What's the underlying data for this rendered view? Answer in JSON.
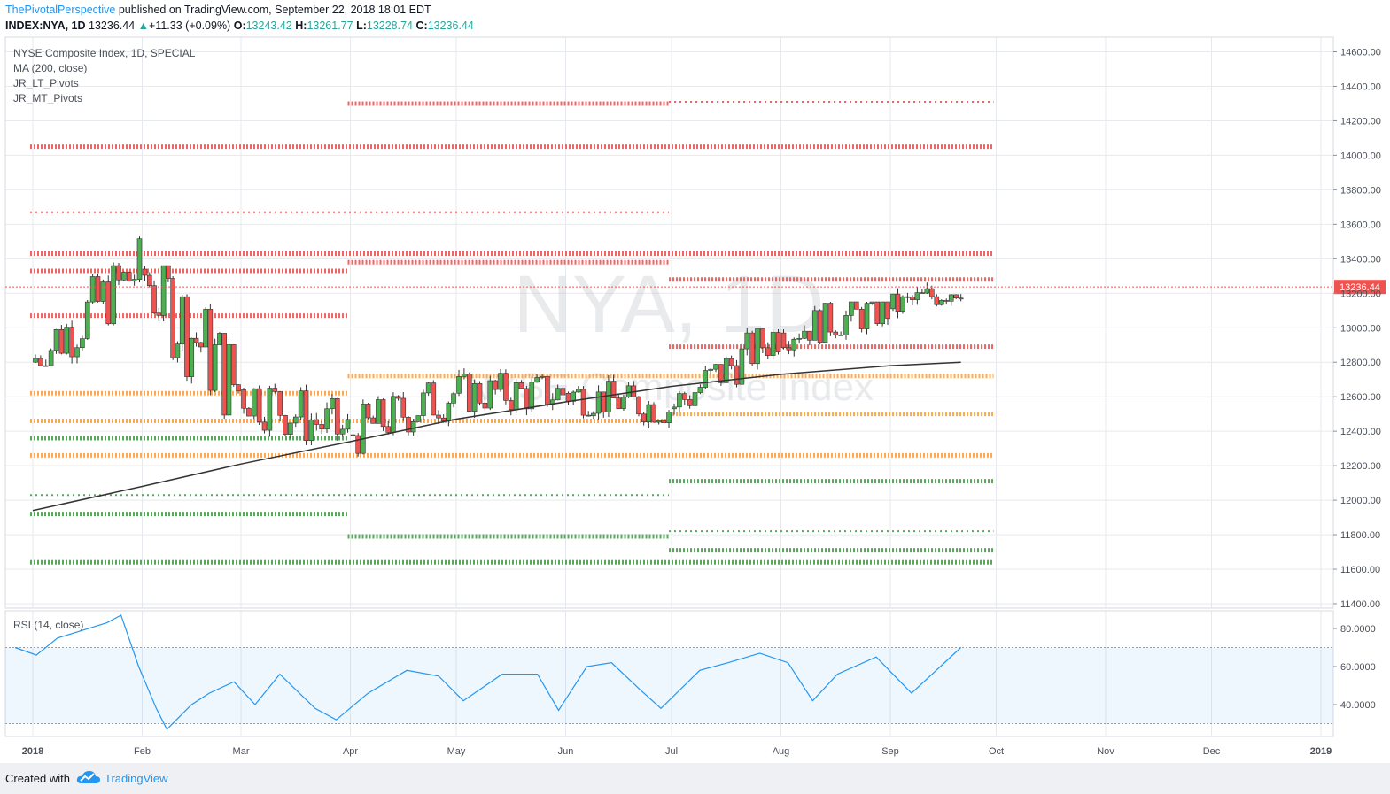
{
  "header": {
    "author": "ThePivotalPerspective",
    "published": "published on TradingView.com, September 22, 2018 18:01 EDT",
    "symbol": "INDEX:NYA, 1D",
    "last": "13236.44",
    "change": "+11.33 (+0.09%)",
    "o_label": "O:",
    "o_value": "13243.42",
    "h_label": "H:",
    "h_value": "13261.77",
    "l_label": "L:",
    "l_value": "13228.74",
    "c_label": "C:",
    "c_value": "13236.44"
  },
  "legend": [
    "NYSE Composite Index, 1D, SPECIAL",
    "MA (200, close)",
    "JR_LT_Pivots",
    "JR_MT_Pivots"
  ],
  "watermark": {
    "symbol": "NYA, 1D",
    "name": "NYSE Composite Index"
  },
  "colors": {
    "up": "#4caf50",
    "down": "#ef5350",
    "resistance": "#ef5350",
    "mid": "#ff9e3d",
    "support": "#43a047",
    "ma": "#333333",
    "rsi": "#2196f3",
    "last_price_tag": "#ef5350"
  },
  "chart_data": [
    {
      "type": "candlestick",
      "title": "NYSE Composite Index, 1D, SPECIAL",
      "ylim": [
        11400,
        14700
      ],
      "y_ticks": [
        "14600.00",
        "14400.00",
        "14200.00",
        "14000.00",
        "13800.00",
        "13600.00",
        "13400.00",
        "13200.00",
        "13000.00",
        "12800.00",
        "12600.00",
        "12400.00",
        "12200.00",
        "12000.00",
        "11800.00",
        "11600.00",
        "11400.00"
      ],
      "x_ticks": [
        "2018",
        "Feb",
        "Mar",
        "Apr",
        "May",
        "Jun",
        "Jul",
        "Aug",
        "Sep",
        "Oct",
        "Nov",
        "Dec",
        "2019"
      ],
      "last_price": "13236.44",
      "ohlc_monthly_approx": [
        {
          "month": "2017-12 end",
          "o": 12780,
          "h": 12820,
          "l": 12750,
          "c": 12800
        },
        {
          "month": "Jan",
          "o": 12800,
          "h": 13640,
          "l": 12780,
          "c": 13340
        },
        {
          "month": "Feb",
          "o": 13340,
          "h": 13360,
          "l": 12050,
          "c": 12640
        },
        {
          "month": "Mar",
          "o": 12640,
          "h": 12960,
          "l": 12180,
          "c": 12380
        },
        {
          "month": "Apr",
          "o": 12380,
          "h": 12750,
          "l": 12100,
          "c": 12620
        },
        {
          "month": "May",
          "o": 12620,
          "h": 12830,
          "l": 12270,
          "c": 12620
        },
        {
          "month": "Jun",
          "o": 12620,
          "h": 12870,
          "l": 12380,
          "c": 12530
        },
        {
          "month": "Jul",
          "o": 12530,
          "h": 13000,
          "l": 12400,
          "c": 12970
        },
        {
          "month": "Aug",
          "o": 12970,
          "h": 13150,
          "l": 12650,
          "c": 13110
        },
        {
          "month": "Sep",
          "o": 13110,
          "h": 13262,
          "l": 12880,
          "c": 13236
        }
      ],
      "ma200": {
        "name": "MA (200, close)",
        "points": [
          {
            "x": "2018-01-01",
            "y": 11940
          },
          {
            "x": "2018-02-01",
            "y": 12080
          },
          {
            "x": "2018-03-01",
            "y": 12210
          },
          {
            "x": "2018-04-01",
            "y": 12340
          },
          {
            "x": "2018-05-01",
            "y": 12470
          },
          {
            "x": "2018-06-01",
            "y": 12570
          },
          {
            "x": "2018-07-01",
            "y": 12660
          },
          {
            "x": "2018-08-01",
            "y": 12730
          },
          {
            "x": "2018-09-01",
            "y": 12780
          },
          {
            "x": "2018-09-21",
            "y": 12800
          }
        ]
      },
      "pivot_levels": [
        {
          "y": 14300,
          "from": "2018-04",
          "to": "2018-06",
          "role": "resistance",
          "style": "thick"
        },
        {
          "y": 14310,
          "from": "2018-07",
          "to": "2018-09",
          "role": "resistance",
          "style": "thin"
        },
        {
          "y": 14050,
          "from": "2018-01",
          "to": "2018-09",
          "role": "resistance",
          "style": "thick"
        },
        {
          "y": 13670,
          "from": "2018-01",
          "to": "2018-06",
          "role": "resistance",
          "style": "thin"
        },
        {
          "y": 13430,
          "from": "2018-01",
          "to": "2018-09",
          "role": "resistance",
          "style": "thick"
        },
        {
          "y": 13380,
          "from": "2018-04",
          "to": "2018-06",
          "role": "resistance",
          "style": "thick"
        },
        {
          "y": 13330,
          "from": "2018-01",
          "to": "2018-03",
          "role": "resistance",
          "style": "thick"
        },
        {
          "y": 13280,
          "from": "2018-07",
          "to": "2018-09",
          "role": "resistance",
          "style": "thick"
        },
        {
          "y": 13070,
          "from": "2018-01",
          "to": "2018-03",
          "role": "resistance",
          "style": "thick"
        },
        {
          "y": 12890,
          "from": "2018-07",
          "to": "2018-09",
          "role": "resistance",
          "style": "thick"
        },
        {
          "y": 12720,
          "from": "2018-04",
          "to": "2018-09",
          "role": "mid",
          "style": "thick"
        },
        {
          "y": 12620,
          "from": "2018-01",
          "to": "2018-03",
          "role": "mid",
          "style": "thick"
        },
        {
          "y": 12500,
          "from": "2018-07",
          "to": "2018-09",
          "role": "mid",
          "style": "thick"
        },
        {
          "y": 12460,
          "from": "2018-01",
          "to": "2018-06",
          "role": "mid",
          "style": "thick"
        },
        {
          "y": 12260,
          "from": "2018-01",
          "to": "2018-09",
          "role": "mid",
          "style": "thick"
        },
        {
          "y": 12360,
          "from": "2018-01",
          "to": "2018-03",
          "role": "support",
          "style": "thick"
        },
        {
          "y": 12110,
          "from": "2018-07",
          "to": "2018-09",
          "role": "support",
          "style": "thick"
        },
        {
          "y": 12030,
          "from": "2018-01",
          "to": "2018-06",
          "role": "support",
          "style": "thin"
        },
        {
          "y": 11920,
          "from": "2018-01",
          "to": "2018-03",
          "role": "support",
          "style": "thick"
        },
        {
          "y": 11790,
          "from": "2018-04",
          "to": "2018-06",
          "role": "support",
          "style": "thick"
        },
        {
          "y": 11820,
          "from": "2018-07",
          "to": "2018-09",
          "role": "support",
          "style": "thin"
        },
        {
          "y": 11710,
          "from": "2018-07",
          "to": "2018-09",
          "role": "support",
          "style": "thick"
        },
        {
          "y": 11640,
          "from": "2018-01",
          "to": "2018-09",
          "role": "support",
          "style": "thick"
        }
      ]
    },
    {
      "type": "line",
      "title": "RSI (14, close)",
      "ylim": [
        25,
        90
      ],
      "y_ticks": [
        "80.0000",
        "60.0000",
        "40.0000"
      ],
      "band": [
        30,
        70
      ],
      "series": [
        {
          "name": "RSI (14, close)",
          "points": [
            {
              "x": "2017-12-27",
              "y": 70
            },
            {
              "x": "2018-01-02",
              "y": 66
            },
            {
              "x": "2018-01-08",
              "y": 75
            },
            {
              "x": "2018-01-15",
              "y": 79
            },
            {
              "x": "2018-01-22",
              "y": 83
            },
            {
              "x": "2018-01-26",
              "y": 87
            },
            {
              "x": "2018-01-31",
              "y": 60
            },
            {
              "x": "2018-02-05",
              "y": 38
            },
            {
              "x": "2018-02-08",
              "y": 27
            },
            {
              "x": "2018-02-15",
              "y": 40
            },
            {
              "x": "2018-02-20",
              "y": 46
            },
            {
              "x": "2018-02-27",
              "y": 52
            },
            {
              "x": "2018-03-05",
              "y": 40
            },
            {
              "x": "2018-03-12",
              "y": 56
            },
            {
              "x": "2018-03-22",
              "y": 38
            },
            {
              "x": "2018-03-28",
              "y": 32
            },
            {
              "x": "2018-04-06",
              "y": 46
            },
            {
              "x": "2018-04-17",
              "y": 58
            },
            {
              "x": "2018-04-26",
              "y": 55
            },
            {
              "x": "2018-05-03",
              "y": 42
            },
            {
              "x": "2018-05-14",
              "y": 56
            },
            {
              "x": "2018-05-24",
              "y": 56
            },
            {
              "x": "2018-05-30",
              "y": 37
            },
            {
              "x": "2018-06-07",
              "y": 60
            },
            {
              "x": "2018-06-14",
              "y": 62
            },
            {
              "x": "2018-06-22",
              "y": 48
            },
            {
              "x": "2018-06-28",
              "y": 38
            },
            {
              "x": "2018-07-09",
              "y": 58
            },
            {
              "x": "2018-07-17",
              "y": 62
            },
            {
              "x": "2018-07-26",
              "y": 67
            },
            {
              "x": "2018-08-03",
              "y": 62
            },
            {
              "x": "2018-08-10",
              "y": 42
            },
            {
              "x": "2018-08-17",
              "y": 56
            },
            {
              "x": "2018-08-28",
              "y": 65
            },
            {
              "x": "2018-09-07",
              "y": 46
            },
            {
              "x": "2018-09-14",
              "y": 58
            },
            {
              "x": "2018-09-21",
              "y": 70
            }
          ]
        }
      ]
    }
  ],
  "footer": {
    "created": "Created with",
    "brand": "TradingView"
  }
}
